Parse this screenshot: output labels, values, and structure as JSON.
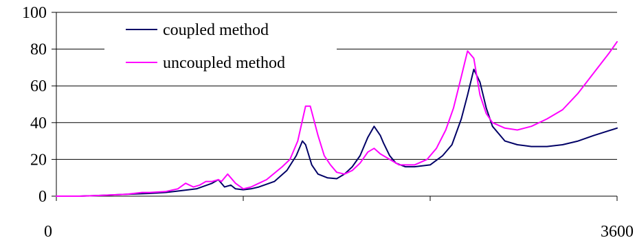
{
  "chart_data": {
    "type": "line",
    "title": "",
    "xlabel": "",
    "ylabel": "",
    "xlim": [
      0,
      3600
    ],
    "ylim": [
      0,
      100
    ],
    "y_ticks": [
      0,
      20,
      40,
      60,
      80,
      100
    ],
    "x_tick_labels": [
      "0",
      "3600"
    ],
    "x_minor_ticks": [
      0,
      1200,
      2400,
      3600
    ],
    "grid": "horizontal",
    "legend_position": "top-left",
    "series": [
      {
        "name": "coupled method",
        "color": "#000066",
        "x": [
          0,
          150,
          300,
          450,
          600,
          700,
          800,
          900,
          1000,
          1040,
          1080,
          1120,
          1150,
          1200,
          1250,
          1300,
          1400,
          1480,
          1540,
          1580,
          1600,
          1640,
          1680,
          1740,
          1800,
          1850,
          1900,
          1950,
          2000,
          2040,
          2080,
          2100,
          2140,
          2180,
          2240,
          2300,
          2400,
          2480,
          2540,
          2600,
          2640,
          2680,
          2720,
          2760,
          2800,
          2880,
          2960,
          3050,
          3150,
          3250,
          3350,
          3450,
          3600
        ],
        "values": [
          0,
          0,
          0.5,
          1,
          1.5,
          2,
          3,
          4,
          7,
          9,
          5,
          6,
          4,
          3.5,
          4,
          5,
          8,
          14,
          22,
          30,
          28,
          17,
          12,
          10,
          9.5,
          12,
          16,
          22,
          32,
          38,
          33,
          29,
          22,
          18,
          16,
          16,
          17,
          22,
          28,
          42,
          55,
          69,
          62,
          48,
          38,
          30,
          28,
          27,
          27,
          28,
          30,
          33,
          37
        ]
      },
      {
        "name": "uncoupled method",
        "color": "#ff00ff",
        "x": [
          0,
          150,
          300,
          450,
          550,
          600,
          700,
          780,
          830,
          880,
          920,
          960,
          1000,
          1040,
          1060,
          1100,
          1150,
          1200,
          1250,
          1300,
          1350,
          1450,
          1500,
          1550,
          1600,
          1630,
          1680,
          1720,
          1760,
          1800,
          1850,
          1900,
          1950,
          2000,
          2040,
          2080,
          2140,
          2200,
          2300,
          2380,
          2440,
          2500,
          2550,
          2600,
          2640,
          2680,
          2720,
          2760,
          2800,
          2880,
          2960,
          3050,
          3150,
          3250,
          3350,
          3450,
          3550,
          3600
        ],
        "values": [
          0,
          0,
          0.5,
          1,
          2,
          2,
          2.5,
          4,
          7,
          5,
          6,
          8,
          8,
          9,
          8,
          12,
          7,
          4,
          5,
          7,
          9,
          16,
          20,
          30,
          49,
          49,
          33,
          22,
          17,
          13,
          12,
          14,
          18,
          24,
          26,
          23,
          20,
          17,
          17,
          20,
          26,
          36,
          48,
          65,
          79,
          75,
          55,
          45,
          40,
          37,
          36,
          38,
          42,
          47,
          56,
          67,
          78,
          84
        ]
      }
    ]
  }
}
